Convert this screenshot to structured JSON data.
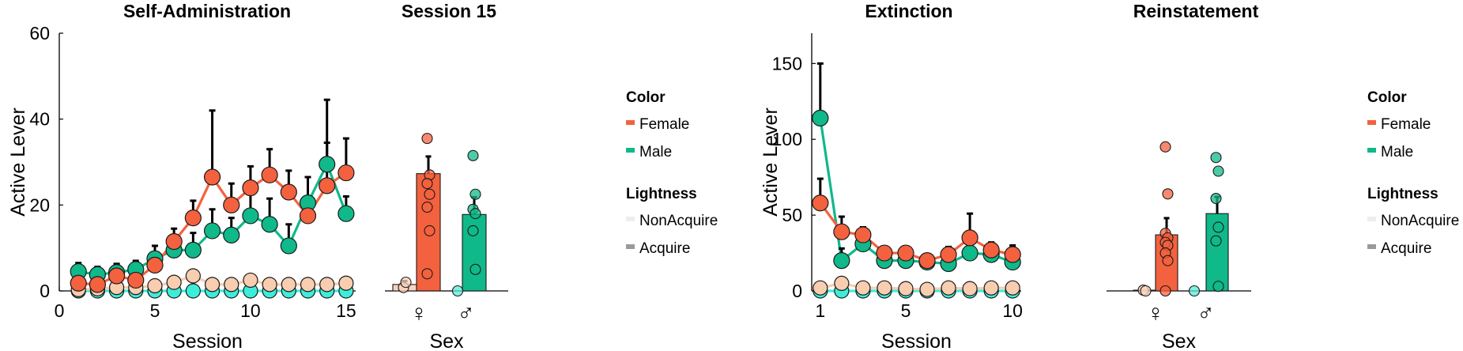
{
  "colors": {
    "female": "#F4613E",
    "male": "#0FB98A",
    "female_light": "#F8CDB0",
    "male_light": "#3EEDD9",
    "female_light_bar": "#FBD3BD",
    "male_light_bar": "#5CE8D8",
    "swatch_nonacquire": "#EDEDED",
    "swatch_acquire": "#9A9A9A"
  },
  "chart_data": [
    {
      "type": "line",
      "title": "Self-Administration",
      "xlabel": "Session",
      "ylabel": "Active Lever",
      "xlim": [
        0,
        15.5
      ],
      "ylim": [
        0,
        60
      ],
      "xticks": [
        0,
        5,
        10,
        15
      ],
      "yticks": [
        0,
        20,
        40,
        60
      ],
      "x": [
        1,
        2,
        3,
        4,
        5,
        6,
        7,
        8,
        9,
        10,
        11,
        12,
        13,
        14,
        15
      ],
      "series": [
        {
          "name": "Female",
          "lightness": "Acquire",
          "values": [
            1.8,
            1.5,
            3.5,
            2.5,
            6,
            11.5,
            17,
            26.5,
            20,
            24,
            27,
            23,
            17.5,
            24.5,
            27.5
          ],
          "err": [
            1.5,
            1.5,
            2,
            2,
            3,
            3,
            4,
            15.5,
            5,
            5,
            6,
            5,
            4,
            10,
            8
          ]
        },
        {
          "name": "Male",
          "lightness": "Acquire",
          "values": [
            4.5,
            3.8,
            4.3,
            5,
            7.5,
            9.5,
            9.5,
            14,
            13,
            17.5,
            15.5,
            10.5,
            20.5,
            29.5,
            18
          ],
          "err": [
            2,
            1.8,
            2,
            2,
            3,
            3,
            4,
            5,
            4,
            5,
            6,
            5,
            6,
            15,
            4
          ]
        },
        {
          "name": "Female",
          "lightness": "NonAcquire",
          "values": [
            0.3,
            0.5,
            0.8,
            0.8,
            1.2,
            2,
            3.5,
            1.5,
            1.5,
            2.5,
            1.5,
            1.5,
            1.5,
            1.5,
            1.8
          ],
          "err": []
        },
        {
          "name": "Male",
          "lightness": "NonAcquire",
          "values": [
            0,
            0,
            0,
            0,
            0,
            0,
            0,
            0,
            0,
            0,
            0,
            0,
            0,
            0,
            0
          ],
          "err": []
        }
      ]
    },
    {
      "type": "bar",
      "title": "Session 15",
      "xlabel": "Sex",
      "categories": [
        "♀",
        "♂"
      ],
      "ylim": [
        0,
        60
      ],
      "bars": [
        {
          "name": "Female",
          "lightness": "NonAcquire",
          "value": 1.5,
          "err": 0.8
        },
        {
          "name": "Female",
          "lightness": "Acquire",
          "value": 27.3,
          "err": 4
        },
        {
          "name": "Male",
          "lightness": "NonAcquire",
          "value": 0,
          "err": 0
        },
        {
          "name": "Male",
          "lightness": "Acquire",
          "value": 17.8,
          "err": 4
        }
      ],
      "points": [
        {
          "bar": 0,
          "values": [
            0.8,
            2
          ]
        },
        {
          "bar": 1,
          "values": [
            35.5,
            27,
            25,
            22.5,
            19.5,
            14,
            4
          ]
        },
        {
          "bar": 2,
          "values": [
            0
          ]
        },
        {
          "bar": 3,
          "values": [
            31.5,
            22.5,
            19,
            18,
            14,
            5
          ]
        }
      ]
    },
    {
      "type": "line",
      "title": "Extinction",
      "xlabel": "Session",
      "ylabel": "Active Lever",
      "xlim": [
        0.6,
        10.4
      ],
      "ylim": [
        0,
        170
      ],
      "xticks": [
        1,
        5,
        10
      ],
      "yticks": [
        0,
        50,
        100,
        150
      ],
      "x": [
        1,
        2,
        3,
        4,
        5,
        6,
        7,
        8,
        9,
        10
      ],
      "series": [
        {
          "name": "Female",
          "lightness": "Acquire",
          "values": [
            58,
            39,
            37,
            25,
            25,
            20,
            24,
            35,
            27,
            24
          ],
          "err": [
            16,
            10,
            5,
            4,
            4,
            3,
            5,
            16,
            5,
            6
          ]
        },
        {
          "name": "Male",
          "lightness": "Acquire",
          "values": [
            114,
            20,
            31,
            20,
            20,
            19,
            18,
            25,
            24,
            19
          ],
          "err": [
            36,
            8,
            7,
            5,
            5,
            5,
            5,
            6,
            6,
            5
          ]
        },
        {
          "name": "Female",
          "lightness": "NonAcquire",
          "values": [
            2,
            5,
            2,
            2,
            1.5,
            1,
            2,
            1.5,
            2,
            2
          ],
          "err": []
        },
        {
          "name": "Male",
          "lightness": "NonAcquire",
          "values": [
            0,
            0,
            0,
            0,
            0,
            0,
            0,
            0,
            0,
            0
          ],
          "err": []
        }
      ]
    },
    {
      "type": "bar",
      "title": "Reinstatement",
      "xlabel": "Sex",
      "categories": [
        "♀",
        "♂"
      ],
      "ylim": [
        0,
        170
      ],
      "bars": [
        {
          "name": "Female",
          "lightness": "NonAcquire",
          "value": 0.5,
          "err": 0
        },
        {
          "name": "Female",
          "lightness": "Acquire",
          "value": 37,
          "err": 11
        },
        {
          "name": "Male",
          "lightness": "NonAcquire",
          "value": 0,
          "err": 0
        },
        {
          "name": "Male",
          "lightness": "Acquire",
          "value": 51,
          "err": 11
        }
      ],
      "points": [
        {
          "bar": 0,
          "values": [
            0.5,
            0
          ]
        },
        {
          "bar": 1,
          "values": [
            95,
            64,
            38,
            35,
            32,
            30,
            25,
            20,
            0
          ]
        },
        {
          "bar": 2,
          "values": [
            0
          ]
        },
        {
          "bar": 3,
          "values": [
            88,
            79,
            61,
            42,
            33,
            3
          ]
        }
      ]
    }
  ],
  "legends": [
    {
      "color_heading": "Color",
      "colors": [
        "Female",
        "Male"
      ],
      "lightness_heading": "Lightness",
      "lightness": [
        "NonAcquire",
        "Acquire"
      ]
    },
    {
      "color_heading": "Color",
      "colors": [
        "Female",
        "Male"
      ],
      "lightness_heading": "Lightness",
      "lightness": [
        "NonAcquire",
        "Acquire"
      ]
    }
  ]
}
